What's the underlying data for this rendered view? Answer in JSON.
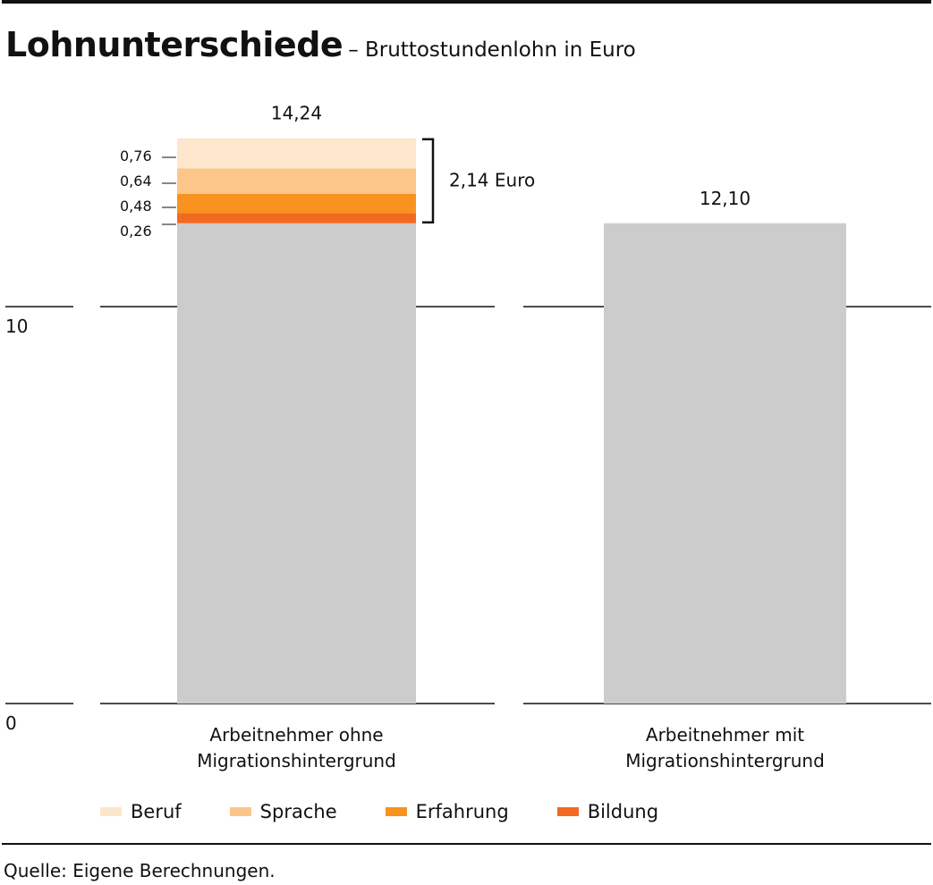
{
  "title": "Lohnunterschiede",
  "subtitle": "– Bruttostundenlohn in Euro",
  "source": "Quelle: Eigene Berechnungen.",
  "chart_data": {
    "type": "bar",
    "y_ticks": [
      {
        "value": 0,
        "label": "0"
      },
      {
        "value": 10,
        "label": "10"
      }
    ],
    "ylim": [
      0,
      14.24
    ],
    "bars": [
      {
        "category": "Arbeitnehmer ohne Migrationshintergrund",
        "category_lines": [
          "Arbeitnehmer ohne",
          "Migrationshintergrund"
        ],
        "total": 14.24,
        "total_label": "14,24",
        "base": 12.1,
        "segments": [
          {
            "name": "Bildung",
            "value": 0.26,
            "label": "0,26"
          },
          {
            "name": "Erfahrung",
            "value": 0.48,
            "label": "0,48"
          },
          {
            "name": "Sprache",
            "value": 0.64,
            "label": "0,64"
          },
          {
            "name": "Beruf",
            "value": 0.76,
            "label": "0,76"
          }
        ],
        "gap_value": 2.14,
        "gap_label": "2,14 Euro"
      },
      {
        "category": "Arbeitnehmer mit Migrationshintergrund",
        "category_lines": [
          "Arbeitnehmer mit",
          "Migrationshintergrund"
        ],
        "total": 12.1,
        "total_label": "12,10",
        "base": 12.1,
        "segments": []
      }
    ],
    "legend": [
      {
        "name": "Beruf",
        "color": "#fde6cb"
      },
      {
        "name": "Sprache",
        "color": "#fcc68a"
      },
      {
        "name": "Erfahrung",
        "color": "#f7931e"
      },
      {
        "name": "Bildung",
        "color": "#f26a21"
      }
    ],
    "base_color": "#cccccc"
  }
}
